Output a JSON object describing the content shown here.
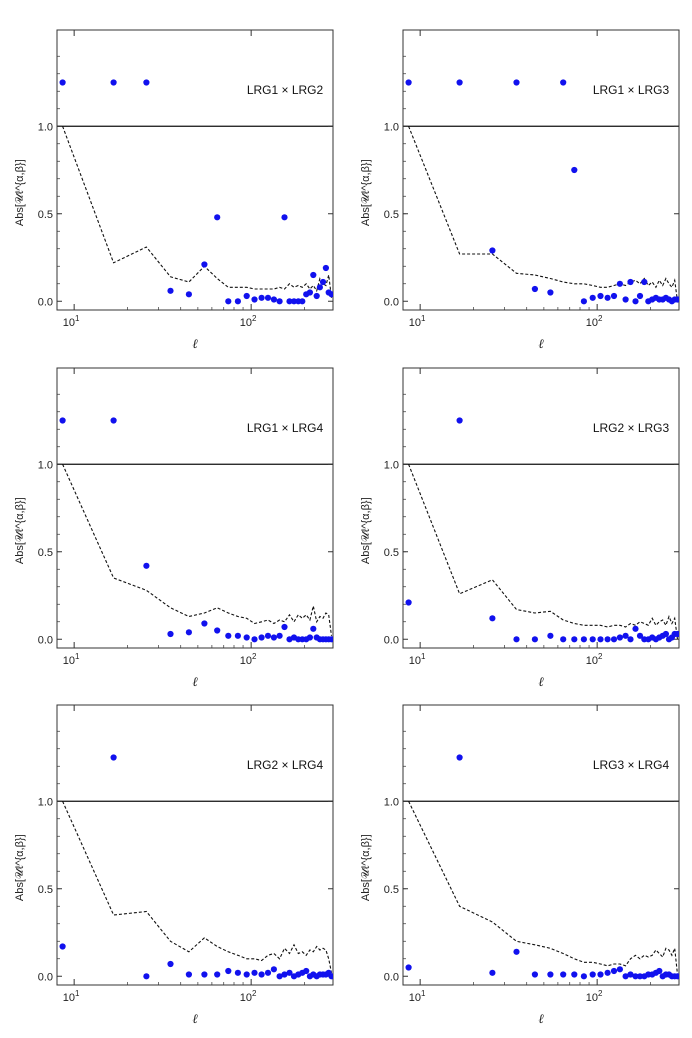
{
  "chart_data": [
    {
      "type": "scatter",
      "title": "LRG1 × LRG2",
      "xlabel": "ℓ",
      "ylabel": "Abs[𝒰ℓ^{α,β}]",
      "xscale": "log",
      "xlim": [
        8,
        290
      ],
      "ylim": [
        -0.05,
        1.55
      ],
      "xticks": [
        {
          "value": 10,
          "base": "10",
          "exp": "1"
        },
        {
          "value": 100,
          "base": "10",
          "exp": "2"
        }
      ],
      "yticks": [
        {
          "value": 0.0,
          "label": "0.0"
        },
        {
          "value": 0.5,
          "label": "0.5"
        },
        {
          "value": 1.0,
          "label": "1.0"
        }
      ],
      "reference_line": 1.0,
      "points": {
        "name": "Abs[U]",
        "x": [
          8.6,
          16.7,
          25.6,
          35,
          44.5,
          54.4,
          64.3,
          74.3,
          84.2,
          94.4,
          104.5,
          114.5,
          124.5,
          134.5,
          144.7,
          154.4,
          164.6,
          174.7,
          184.7,
          194.6,
          204.6,
          214.6,
          224.4,
          234.7,
          244.6,
          254.6,
          264.4,
          274.4,
          284.4
        ],
        "y": [
          1.25,
          1.25,
          1.25,
          0.06,
          0.04,
          0.21,
          0.48,
          0.0,
          0.0,
          0.03,
          0.01,
          0.02,
          0.02,
          0.01,
          0.0,
          0.48,
          0.0,
          0.0,
          0.0,
          0.0,
          0.04,
          0.05,
          0.15,
          0.03,
          0.08,
          0.11,
          0.19,
          0.05,
          0.04
        ]
      },
      "dashed_line": {
        "name": "threshold",
        "x": [
          8.6,
          16.7,
          25.6,
          35,
          44.5,
          54.4,
          64.3,
          74.3,
          84.2,
          94.4,
          104.5,
          114.5,
          124.5,
          134.5,
          144.7,
          154.4,
          164.6,
          174.7,
          184.7,
          194.6,
          204.6,
          214.6,
          224.4,
          234.7,
          244.6,
          254.6,
          264.4,
          274.4,
          284.4
        ],
        "y": [
          1.0,
          0.22,
          0.31,
          0.14,
          0.11,
          0.2,
          0.13,
          0.08,
          0.08,
          0.08,
          0.07,
          0.07,
          0.07,
          0.07,
          0.08,
          0.07,
          0.1,
          0.08,
          0.09,
          0.08,
          0.1,
          0.07,
          0.09,
          0.06,
          0.13,
          0.1,
          0.09,
          0.15,
          0.02
        ]
      }
    },
    {
      "type": "scatter",
      "title": "LRG1 × LRG3",
      "xlabel": "ℓ",
      "ylabel": "Abs[𝒰ℓ^{α,β}]",
      "xscale": "log",
      "xlim": [
        8,
        290
      ],
      "ylim": [
        -0.05,
        1.55
      ],
      "xticks": [
        {
          "value": 10,
          "base": "10",
          "exp": "1"
        },
        {
          "value": 100,
          "base": "10",
          "exp": "2"
        }
      ],
      "yticks": [
        {
          "value": 0.0,
          "label": "0.0"
        },
        {
          "value": 0.5,
          "label": "0.5"
        },
        {
          "value": 1.0,
          "label": "1.0"
        }
      ],
      "reference_line": 1.0,
      "points": {
        "name": "Abs[U]",
        "x": [
          8.6,
          16.7,
          25.6,
          35,
          44.5,
          54.4,
          64.3,
          74.3,
          84.2,
          94.4,
          104.5,
          114.5,
          124.5,
          134.5,
          144.7,
          154.4,
          164.6,
          174.7,
          184.7,
          194.6,
          204.6,
          214.6,
          224.4,
          234.7,
          244.6,
          254.6,
          264.4,
          274.4,
          284.4
        ],
        "y": [
          1.25,
          1.25,
          0.29,
          1.25,
          0.07,
          0.05,
          1.25,
          0.75,
          0.0,
          0.02,
          0.03,
          0.02,
          0.03,
          0.1,
          0.01,
          0.11,
          0.0,
          0.03,
          0.11,
          0.0,
          0.01,
          0.02,
          0.01,
          0.01,
          0.02,
          0.01,
          0.0,
          0.01,
          0.01
        ]
      },
      "dashed_line": {
        "name": "threshold",
        "x": [
          8.6,
          16.7,
          25.6,
          35,
          44.5,
          54.4,
          64.3,
          74.3,
          84.2,
          94.4,
          104.5,
          114.5,
          124.5,
          134.5,
          144.7,
          154.4,
          164.6,
          174.7,
          184.7,
          194.6,
          204.6,
          214.6,
          224.4,
          234.7,
          244.6,
          254.6,
          264.4,
          274.4,
          284.4
        ],
        "y": [
          1.0,
          0.27,
          0.27,
          0.16,
          0.15,
          0.13,
          0.11,
          0.1,
          0.1,
          0.09,
          0.08,
          0.08,
          0.09,
          0.1,
          0.09,
          0.11,
          0.12,
          0.1,
          0.13,
          0.09,
          0.11,
          0.08,
          0.12,
          0.09,
          0.13,
          0.1,
          0.08,
          0.12,
          0.0
        ]
      }
    },
    {
      "type": "scatter",
      "title": "LRG1 × LRG4",
      "xlabel": "ℓ",
      "ylabel": "Abs[𝒰ℓ^{α,β}]",
      "xscale": "log",
      "xlim": [
        8,
        290
      ],
      "ylim": [
        -0.05,
        1.55
      ],
      "xticks": [
        {
          "value": 10,
          "base": "10",
          "exp": "1"
        },
        {
          "value": 100,
          "base": "10",
          "exp": "2"
        }
      ],
      "yticks": [
        {
          "value": 0.0,
          "label": "0.0"
        },
        {
          "value": 0.5,
          "label": "0.5"
        },
        {
          "value": 1.0,
          "label": "1.0"
        }
      ],
      "reference_line": 1.0,
      "points": {
        "name": "Abs[U]",
        "x": [
          8.6,
          16.7,
          25.6,
          35,
          44.5,
          54.4,
          64.3,
          74.3,
          84.2,
          94.4,
          104.5,
          114.5,
          124.5,
          134.5,
          144.7,
          154.4,
          164.6,
          174.7,
          184.7,
          194.6,
          204.6,
          214.6,
          224.4,
          234.7,
          244.6,
          254.6,
          264.4,
          274.4,
          284.4
        ],
        "y": [
          1.25,
          1.25,
          0.42,
          0.03,
          0.04,
          0.09,
          0.05,
          0.02,
          0.02,
          0.01,
          0.0,
          0.01,
          0.02,
          0.01,
          0.02,
          0.07,
          0.0,
          0.01,
          0.0,
          0.0,
          0.0,
          0.01,
          0.06,
          0.01,
          0.0,
          0.0,
          0.0,
          0.0,
          0.0
        ]
      },
      "dashed_line": {
        "name": "threshold",
        "x": [
          8.6,
          16.7,
          25.6,
          35,
          44.5,
          54.4,
          64.3,
          74.3,
          84.2,
          94.4,
          104.5,
          114.5,
          124.5,
          134.5,
          144.7,
          154.4,
          164.6,
          174.7,
          184.7,
          194.6,
          204.6,
          214.6,
          224.4,
          234.7,
          244.6,
          254.6,
          264.4,
          274.4,
          284.4
        ],
        "y": [
          1.0,
          0.35,
          0.28,
          0.18,
          0.13,
          0.15,
          0.18,
          0.15,
          0.13,
          0.12,
          0.09,
          0.1,
          0.11,
          0.09,
          0.11,
          0.1,
          0.14,
          0.1,
          0.14,
          0.12,
          0.14,
          0.11,
          0.19,
          0.1,
          0.13,
          0.12,
          0.15,
          0.14,
          0.02
        ]
      }
    },
    {
      "type": "scatter",
      "title": "LRG2 × LRG3",
      "xlabel": "ℓ",
      "ylabel": "Abs[𝒰ℓ^{α,β}]",
      "xscale": "log",
      "xlim": [
        8,
        290
      ],
      "ylim": [
        -0.05,
        1.55
      ],
      "xticks": [
        {
          "value": 10,
          "base": "10",
          "exp": "1"
        },
        {
          "value": 100,
          "base": "10",
          "exp": "2"
        }
      ],
      "yticks": [
        {
          "value": 0.0,
          "label": "0.0"
        },
        {
          "value": 0.5,
          "label": "0.5"
        },
        {
          "value": 1.0,
          "label": "1.0"
        }
      ],
      "reference_line": 1.0,
      "points": {
        "name": "Abs[U]",
        "x": [
          8.6,
          16.7,
          25.6,
          35,
          44.5,
          54.4,
          64.3,
          74.3,
          84.2,
          94.4,
          104.5,
          114.5,
          124.5,
          134.5,
          144.7,
          154.4,
          164.6,
          174.7,
          184.7,
          194.6,
          204.6,
          214.6,
          224.4,
          234.7,
          244.6,
          254.6,
          264.4,
          274.4,
          284.4
        ],
        "y": [
          0.21,
          1.25,
          0.12,
          0.0,
          0.0,
          0.02,
          0.0,
          0.0,
          0.0,
          0.0,
          0.0,
          0.0,
          0.0,
          0.01,
          0.02,
          0.0,
          0.06,
          0.02,
          0.0,
          0.0,
          0.01,
          0.0,
          0.01,
          0.02,
          0.03,
          0.0,
          0.01,
          0.03,
          0.03
        ]
      },
      "dashed_line": {
        "name": "threshold",
        "x": [
          8.6,
          16.7,
          25.6,
          35,
          44.5,
          54.4,
          64.3,
          74.3,
          84.2,
          94.4,
          104.5,
          114.5,
          124.5,
          134.5,
          144.7,
          154.4,
          164.6,
          174.7,
          184.7,
          194.6,
          204.6,
          214.6,
          224.4,
          234.7,
          244.6,
          254.6,
          264.4,
          274.4,
          284.4
        ],
        "y": [
          1.0,
          0.26,
          0.34,
          0.17,
          0.15,
          0.16,
          0.11,
          0.09,
          0.08,
          0.08,
          0.08,
          0.07,
          0.08,
          0.08,
          0.07,
          0.09,
          0.08,
          0.1,
          0.09,
          0.08,
          0.12,
          0.08,
          0.1,
          0.11,
          0.08,
          0.13,
          0.09,
          0.12,
          0.0
        ]
      }
    },
    {
      "type": "scatter",
      "title": "LRG2 × LRG4",
      "xlabel": "ℓ",
      "ylabel": "Abs[𝒰ℓ^{α,β}]",
      "xscale": "log",
      "xlim": [
        8,
        290
      ],
      "ylim": [
        -0.05,
        1.55
      ],
      "xticks": [
        {
          "value": 10,
          "base": "10",
          "exp": "1"
        },
        {
          "value": 100,
          "base": "10",
          "exp": "2"
        }
      ],
      "yticks": [
        {
          "value": 0.0,
          "label": "0.0"
        },
        {
          "value": 0.5,
          "label": "0.5"
        },
        {
          "value": 1.0,
          "label": "1.0"
        }
      ],
      "reference_line": 1.0,
      "points": {
        "name": "Abs[U]",
        "x": [
          8.6,
          16.7,
          25.6,
          35,
          44.5,
          54.4,
          64.3,
          74.3,
          84.2,
          94.4,
          104.5,
          114.5,
          124.5,
          134.5,
          144.7,
          154.4,
          164.6,
          174.7,
          184.7,
          194.6,
          204.6,
          214.6,
          224.4,
          234.7,
          244.6,
          254.6,
          264.4,
          274.4,
          284.4
        ],
        "y": [
          0.17,
          1.25,
          0.0,
          0.07,
          0.01,
          0.01,
          0.01,
          0.03,
          0.02,
          0.01,
          0.02,
          0.01,
          0.02,
          0.04,
          0.0,
          0.01,
          0.02,
          0.0,
          0.01,
          0.02,
          0.03,
          0.0,
          0.01,
          0.0,
          0.01,
          0.01,
          0.01,
          0.02,
          0.0
        ]
      },
      "dashed_line": {
        "name": "threshold",
        "x": [
          8.6,
          16.7,
          25.6,
          35,
          44.5,
          54.4,
          64.3,
          74.3,
          84.2,
          94.4,
          104.5,
          114.5,
          124.5,
          134.5,
          144.7,
          154.4,
          164.6,
          174.7,
          184.7,
          194.6,
          204.6,
          214.6,
          224.4,
          234.7,
          244.6,
          254.6,
          264.4,
          274.4,
          284.4
        ],
        "y": [
          1.0,
          0.35,
          0.37,
          0.2,
          0.14,
          0.22,
          0.17,
          0.14,
          0.12,
          0.1,
          0.1,
          0.09,
          0.12,
          0.13,
          0.1,
          0.16,
          0.13,
          0.18,
          0.13,
          0.14,
          0.12,
          0.15,
          0.14,
          0.17,
          0.15,
          0.16,
          0.15,
          0.1,
          0.02
        ]
      }
    },
    {
      "type": "scatter",
      "title": "LRG3 × LRG4",
      "xlabel": "ℓ",
      "ylabel": "Abs[𝒰ℓ^{α,β}]",
      "xscale": "log",
      "xlim": [
        8,
        290
      ],
      "ylim": [
        -0.05,
        1.55
      ],
      "xticks": [
        {
          "value": 10,
          "base": "10",
          "exp": "1"
        },
        {
          "value": 100,
          "base": "10",
          "exp": "2"
        }
      ],
      "yticks": [
        {
          "value": 0.0,
          "label": "0.0"
        },
        {
          "value": 0.5,
          "label": "0.5"
        },
        {
          "value": 1.0,
          "label": "1.0"
        }
      ],
      "reference_line": 1.0,
      "points": {
        "name": "Abs[U]",
        "x": [
          8.6,
          16.7,
          25.6,
          35,
          44.5,
          54.4,
          64.3,
          74.3,
          84.2,
          94.4,
          104.5,
          114.5,
          124.5,
          134.5,
          144.7,
          154.4,
          164.6,
          174.7,
          184.7,
          194.6,
          204.6,
          214.6,
          224.4,
          234.7,
          244.6,
          254.6,
          264.4,
          274.4,
          284.4
        ],
        "y": [
          0.05,
          1.25,
          0.02,
          0.14,
          0.01,
          0.01,
          0.01,
          0.01,
          0.0,
          0.01,
          0.01,
          0.02,
          0.03,
          0.04,
          0.0,
          0.01,
          0.0,
          0.0,
          0.0,
          0.01,
          0.01,
          0.02,
          0.03,
          0.0,
          0.01,
          0.01,
          0.0,
          0.0,
          0.0
        ]
      },
      "dashed_line": {
        "name": "threshold",
        "x": [
          8.6,
          16.7,
          25.6,
          35,
          44.5,
          54.4,
          64.3,
          74.3,
          84.2,
          94.4,
          104.5,
          114.5,
          124.5,
          134.5,
          144.7,
          154.4,
          164.6,
          174.7,
          184.7,
          194.6,
          204.6,
          214.6,
          224.4,
          234.7,
          244.6,
          254.6,
          264.4,
          274.4,
          284.4
        ],
        "y": [
          1.0,
          0.4,
          0.31,
          0.2,
          0.18,
          0.16,
          0.13,
          0.1,
          0.08,
          0.08,
          0.07,
          0.06,
          0.07,
          0.07,
          0.06,
          0.1,
          0.12,
          0.1,
          0.12,
          0.11,
          0.12,
          0.15,
          0.13,
          0.11,
          0.16,
          0.15,
          0.12,
          0.16,
          0.01
        ]
      }
    }
  ],
  "colors": {
    "points": "#1111ee",
    "dashed_line": "#111111",
    "reference_line": "#111111",
    "frame": "#333333"
  }
}
